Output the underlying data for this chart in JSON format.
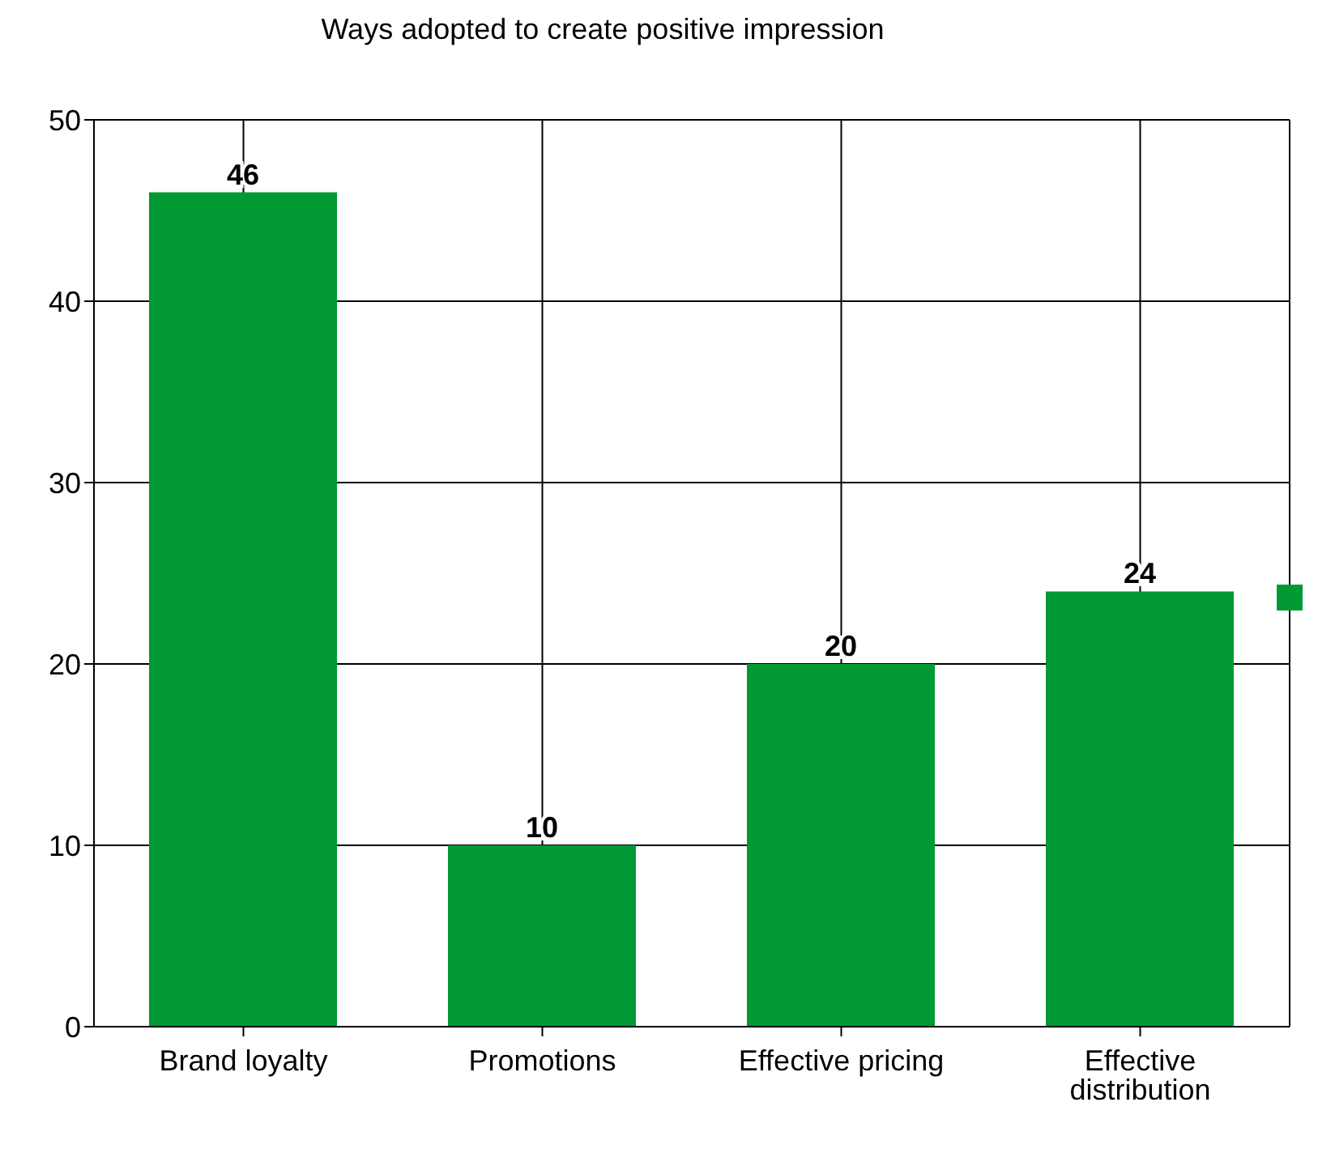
{
  "chart_data": {
    "type": "bar",
    "title": "Ways adopted to create positive impression",
    "categories": [
      "Brand loyalty",
      "Promotions",
      "Effective pricing",
      "Effective distribution"
    ],
    "values": [
      46,
      10,
      20,
      24
    ],
    "color": "#009933",
    "ylim": [
      0,
      50
    ],
    "yticks": [
      0,
      10,
      20,
      30,
      40,
      50
    ],
    "grid": true,
    "data_labels": true
  }
}
